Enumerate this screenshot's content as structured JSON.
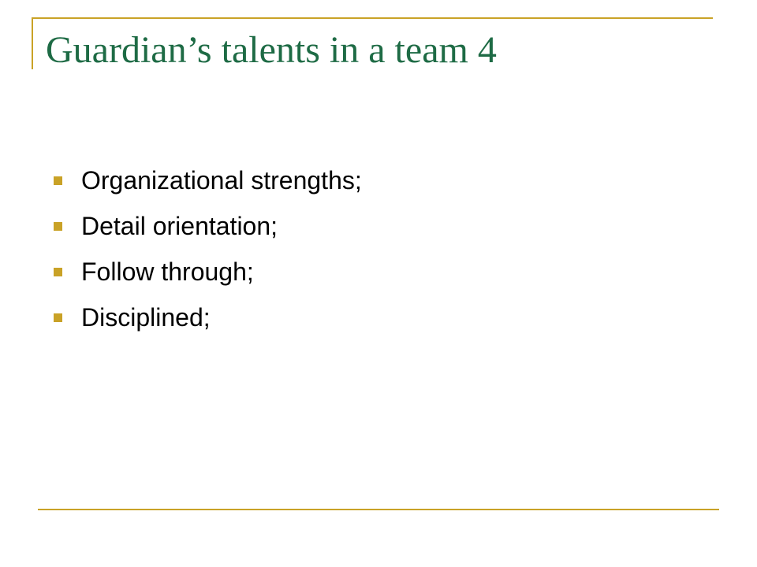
{
  "slide": {
    "title": "Guardian’s talents in a team 4",
    "bullets": [
      "Organizational strengths;",
      "Detail orientation;",
      "Follow through;",
      "Disciplined;"
    ]
  },
  "colors": {
    "title": "#1e6b45",
    "accent": "#c9a227",
    "text": "#000000",
    "background": "#ffffff"
  }
}
